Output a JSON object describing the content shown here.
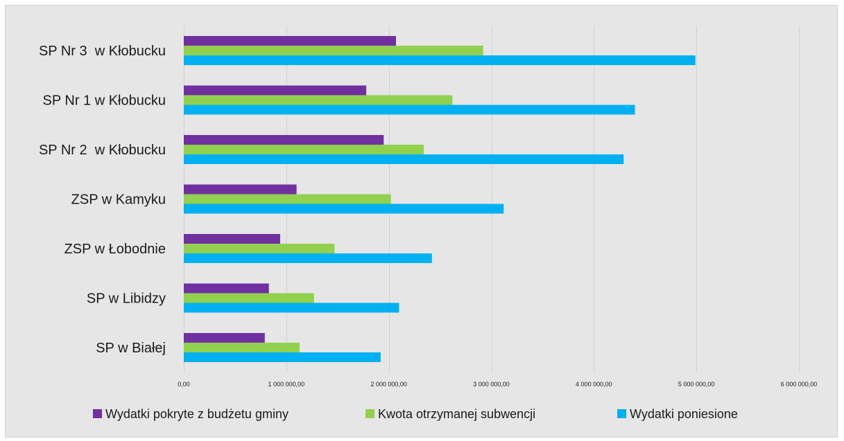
{
  "chart_data": {
    "type": "bar",
    "orientation": "horizontal",
    "categories": [
      "SP Nr 3  w Kłobucku",
      "SP Nr 1 w Kłobucku",
      "SP Nr 2  w Kłobucku",
      "ZSP w Kamyku",
      "ZSP w Łobodnie",
      "SP w Libidzy",
      "SP w Białej"
    ],
    "series": [
      {
        "name": "Wydatki pokryte z budżetu gminy",
        "color": "#7030a0",
        "values": [
          2070000,
          1780000,
          1950000,
          1100000,
          940000,
          830000,
          790000
        ]
      },
      {
        "name": "Kwota otrzymanej subwencji",
        "color": "#92d050",
        "values": [
          2920000,
          2620000,
          2340000,
          2020000,
          1470000,
          1270000,
          1130000
        ]
      },
      {
        "name": "Wydatki poniesione",
        "color": "#00b0f0",
        "values": [
          4990000,
          4400000,
          4290000,
          3120000,
          2420000,
          2100000,
          1920000
        ]
      }
    ],
    "xlim": [
      0,
      6000000
    ],
    "xticks": [
      0,
      1000000,
      2000000,
      3000000,
      4000000,
      5000000,
      6000000
    ],
    "xtick_labels": [
      "0,00",
      "1 000 000,00",
      "2 000 000,00",
      "3 000 000,00",
      "4 000 000,00",
      "5 000 000,00",
      "6 000 000,00"
    ],
    "grid": "vertical",
    "legend_position": "bottom",
    "title": "",
    "xlabel": "",
    "ylabel": ""
  }
}
